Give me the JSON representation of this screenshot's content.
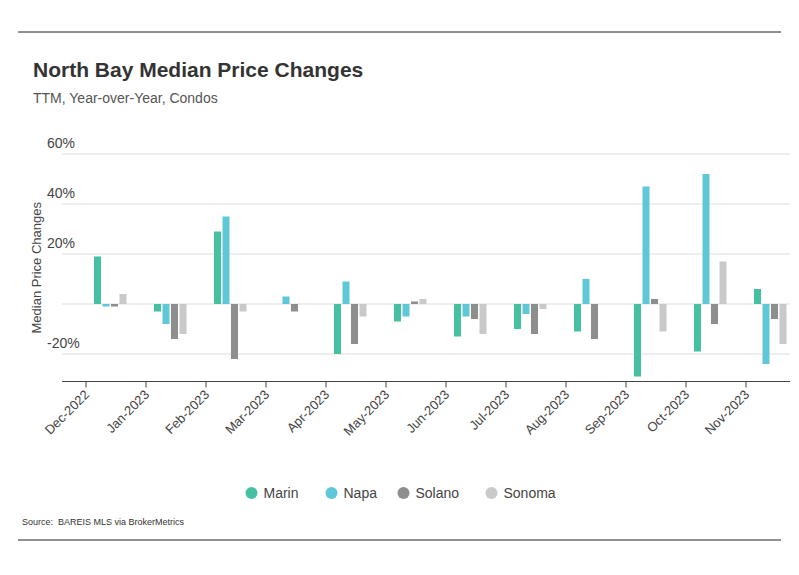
{
  "chart_data": {
    "type": "bar",
    "title": "North Bay Median Price Changes",
    "subtitle": "TTM, Year-over-Year, Condos",
    "y_label": "Median Price Changes",
    "source": "Source:  BAREIS MLS via BrokerMetrics",
    "categories": [
      "Dec-2022",
      "Jan-2023",
      "Feb-2023",
      "Mar-2023",
      "Apr-2023",
      "May-2023",
      "Jun-2023",
      "Jul-2023",
      "Aug-2023",
      "Sep-2023",
      "Oct-2023",
      "Nov-2023"
    ],
    "series": [
      {
        "name": "Marin",
        "color": "#45c1a1",
        "values": [
          19,
          -3,
          29,
          0,
          -20,
          -7,
          -13,
          -10,
          -11,
          -29,
          -19,
          6
        ]
      },
      {
        "name": "Napa",
        "color": "#5ec8d8",
        "values": [
          -1,
          -8,
          35,
          3,
          9,
          -5,
          -5,
          -4,
          10,
          47,
          52,
          -24
        ]
      },
      {
        "name": "Solano",
        "color": "#8e8e8e",
        "values": [
          -1,
          -14,
          -22,
          -3,
          -16,
          1,
          -6,
          -12,
          -14,
          2,
          -8,
          -6
        ]
      },
      {
        "name": "Sonoma",
        "color": "#c9c9c9",
        "values": [
          4,
          -12,
          -3,
          0,
          -5,
          2,
          -12,
          -2,
          0,
          -11,
          17,
          -16
        ]
      }
    ],
    "ylim": [
      -31,
      60
    ],
    "yticks": [
      {
        "value": 60,
        "label": "60%"
      },
      {
        "value": 40,
        "label": "40%"
      },
      {
        "value": 20,
        "label": "20%"
      },
      {
        "value": -20,
        "label": "-20%"
      }
    ],
    "grid": true,
    "legend": "bottom"
  }
}
